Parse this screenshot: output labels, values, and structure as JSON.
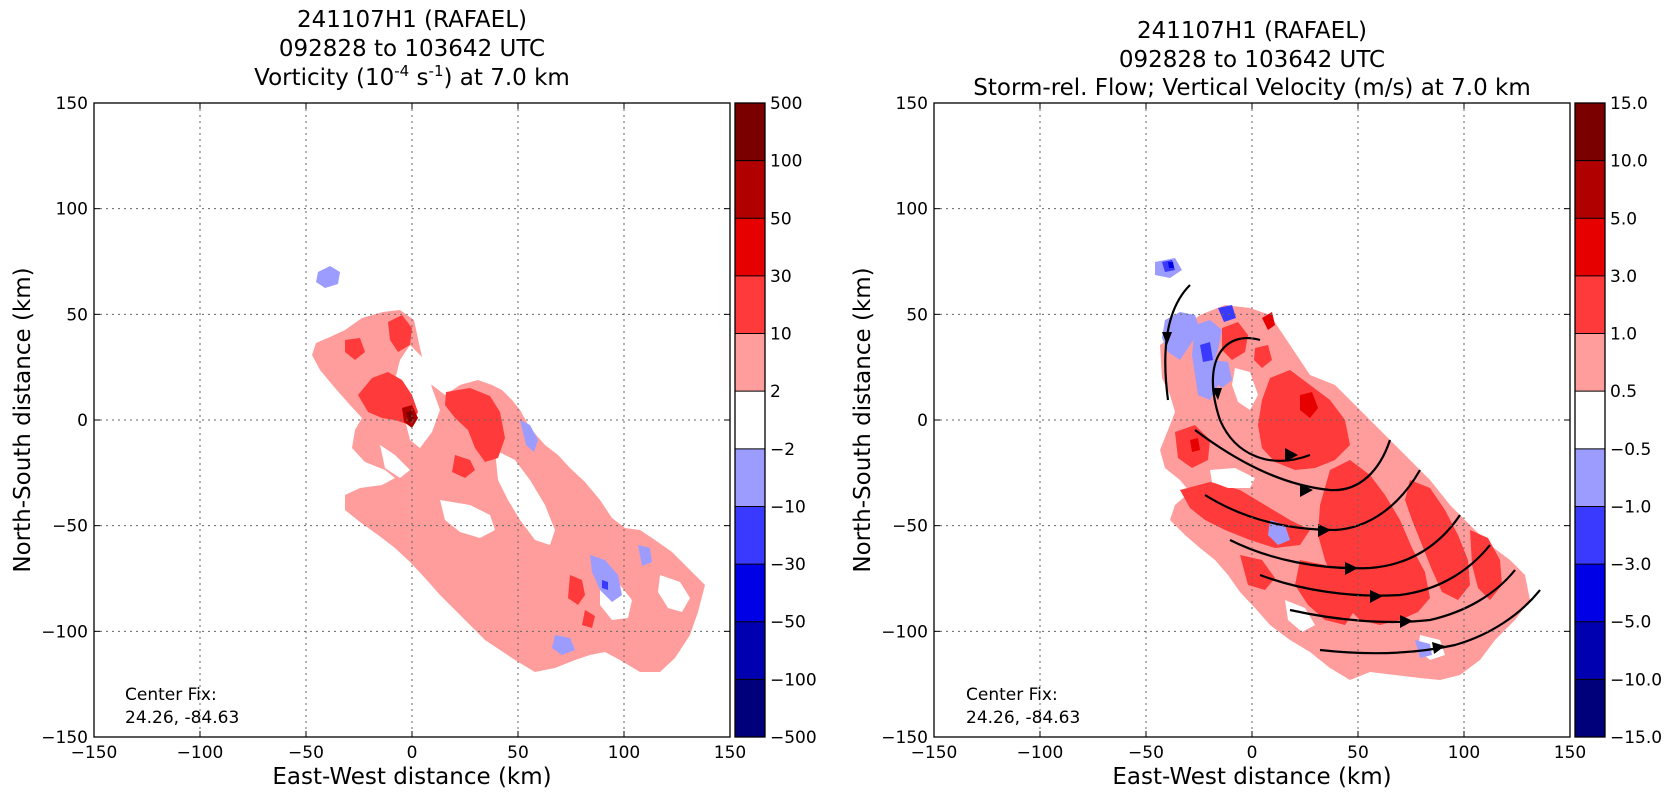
{
  "chart_data": [
    {
      "type": "heatmap",
      "title_lines": [
        "241107H1 (RAFAEL)",
        "092828 to 103642 UTC"
      ],
      "title_line3": {
        "prefix": "Vorticity (10",
        "exp1": "-4",
        "mid": " s",
        "exp2": "-1",
        "suffix": ") at 7.0 km"
      },
      "xlabel": "East-West distance (km)",
      "ylabel": "North-South distance (km)",
      "xlim": [
        -150,
        150
      ],
      "ylim": [
        -150,
        150
      ],
      "xticks": [
        "−150",
        "−100",
        "−50",
        "0",
        "50",
        "100",
        "150"
      ],
      "yticks": [
        "150",
        "100",
        "50",
        "0",
        "−50",
        "−100",
        "−150"
      ],
      "grid": true,
      "annotation": [
        "Center Fix:",
        "24.26, -84.63"
      ],
      "colorbar_labels": [
        "500",
        "100",
        "50",
        "30",
        "10",
        "2",
        "−2",
        "−10",
        "−30",
        "−50",
        "−100",
        "−500"
      ],
      "colorbar_colors": [
        "#7a0000",
        "#b00000",
        "#e60000",
        "#ff3a3a",
        "#ff9c9c",
        "#ffffff",
        "#9c9cff",
        "#3a3aff",
        "#0000e6",
        "#0000b0",
        "#00007a"
      ]
    },
    {
      "type": "heatmap",
      "title_lines": [
        "241107H1 (RAFAEL)",
        "092828 to 103642 UTC",
        "Storm-rel. Flow; Vertical Velocity (m/s) at 7.0 km"
      ],
      "xlabel": "East-West distance (km)",
      "ylabel": "North-South distance (km)",
      "xlim": [
        -150,
        150
      ],
      "ylim": [
        -150,
        150
      ],
      "xticks": [
        "−150",
        "−100",
        "−50",
        "0",
        "50",
        "100",
        "150"
      ],
      "yticks": [
        "150",
        "100",
        "50",
        "0",
        "−50",
        "−100",
        "−150"
      ],
      "grid": true,
      "annotation": [
        "Center Fix:",
        "24.26, -84.63"
      ],
      "colorbar_labels": [
        "15.0",
        "10.0",
        "5.0",
        "3.0",
        "1.0",
        "0.5",
        "−0.5",
        "−1.0",
        "−3.0",
        "−5.0",
        "−10.0",
        "−15.0"
      ],
      "colorbar_colors": [
        "#7a0000",
        "#b00000",
        "#e60000",
        "#ff3a3a",
        "#ff9c9c",
        "#ffffff",
        "#9c9cff",
        "#3a3aff",
        "#0000e6",
        "#0000b0",
        "#00007a"
      ]
    }
  ]
}
